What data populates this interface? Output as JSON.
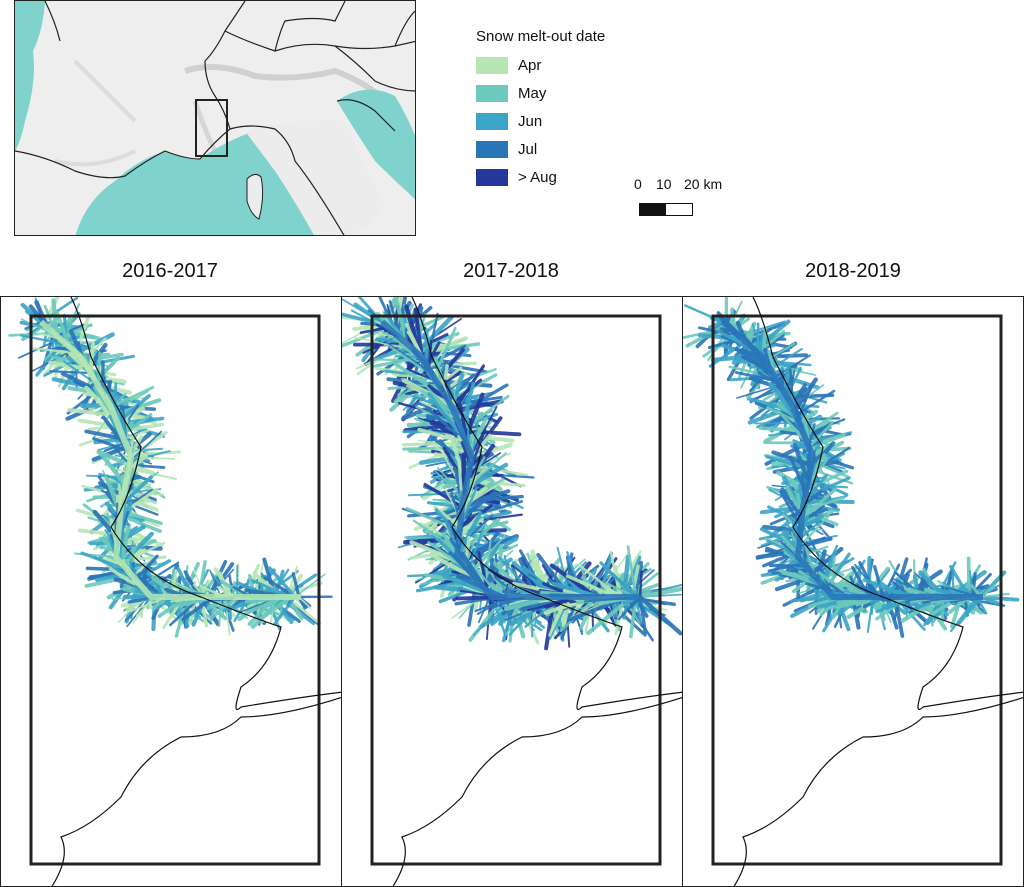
{
  "legend": {
    "title": "Snow melt-out date",
    "items": [
      {
        "label": "Apr",
        "color": "#b5e6b4"
      },
      {
        "label": "May",
        "color": "#6cc9bb"
      },
      {
        "label": "Jun",
        "color": "#3ba5c7"
      },
      {
        "label": "Jul",
        "color": "#2a74b8"
      },
      {
        "label": "> Aug",
        "color": "#23389a"
      }
    ]
  },
  "scalebar": {
    "labels": [
      "0",
      "10",
      "20 km"
    ]
  },
  "panels": [
    {
      "title": "2016-2017",
      "palette": [
        "#3ba5c7",
        "#6cc9bb",
        "#2a74b8",
        "#b5e6b4"
      ]
    },
    {
      "title": "2017-2018",
      "palette": [
        "#6cc9bb",
        "#b5e6b4",
        "#3ba5c7",
        "#2a74b8",
        "#23389a"
      ]
    },
    {
      "title": "2018-2019",
      "palette": [
        "#3ba5c7",
        "#2a74b8",
        "#6cc9bb"
      ]
    }
  ],
  "inset": {
    "sea_color": "#7fd3cc",
    "land_color": "#ececec"
  }
}
